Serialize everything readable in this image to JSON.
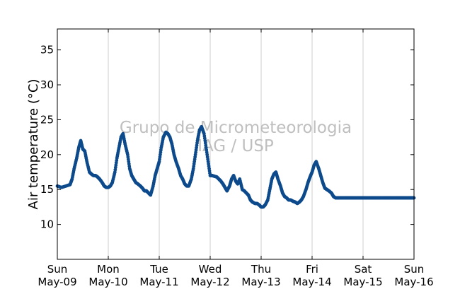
{
  "chart_data": {
    "type": "scatter",
    "ylabel": "Air temperature (°C)",
    "xlabel": "",
    "ylim": [
      5,
      38
    ],
    "xlim": [
      0,
      7
    ],
    "yticks": [
      10,
      15,
      20,
      25,
      30,
      35
    ],
    "xticks": [
      {
        "x": 0,
        "day": "Sun",
        "date": "May-09"
      },
      {
        "x": 1,
        "day": "Mon",
        "date": "May-10"
      },
      {
        "x": 2,
        "day": "Tue",
        "date": "May-11"
      },
      {
        "x": 3,
        "day": "Wed",
        "date": "May-12"
      },
      {
        "x": 4,
        "day": "Thu",
        "date": "May-13"
      },
      {
        "x": 5,
        "day": "Fri",
        "date": "May-14"
      },
      {
        "x": 6,
        "day": "Sat",
        "date": "May-15"
      },
      {
        "x": 7,
        "day": "Sun",
        "date": "May-16"
      }
    ],
    "grid": "vertical",
    "marker_color": "#0d4a8c",
    "watermark": [
      "Grupo de Micrometeorologia",
      "IAG / USP"
    ],
    "series": [
      {
        "x": [
          0.0,
          0.08,
          0.17,
          0.25,
          0.29,
          0.33,
          0.38,
          0.42,
          0.46,
          0.5,
          0.54,
          0.58,
          0.63,
          0.67,
          0.71,
          0.75,
          0.79,
          0.83,
          0.88,
          0.92,
          0.96,
          1.0,
          1.04,
          1.08,
          1.13,
          1.17,
          1.21,
          1.25,
          1.29,
          1.33,
          1.38,
          1.42,
          1.46,
          1.5,
          1.54,
          1.58,
          1.63,
          1.67,
          1.71,
          1.75,
          1.79,
          1.83,
          1.88,
          1.92,
          1.96,
          2.0,
          2.04,
          2.08,
          2.13,
          2.17,
          2.21,
          2.25,
          2.29,
          2.33,
          2.38,
          2.42,
          2.46,
          2.5,
          2.54,
          2.58,
          2.63,
          2.67,
          2.71,
          2.75,
          2.79,
          2.83,
          2.88,
          2.92,
          2.96,
          3.0,
          3.04,
          3.08,
          3.13,
          3.17,
          3.21,
          3.25,
          3.29,
          3.33,
          3.38,
          3.42,
          3.46,
          3.5,
          3.54,
          3.58,
          3.63,
          3.67,
          3.71,
          3.75,
          3.79,
          3.83,
          3.88,
          3.92,
          3.96,
          4.0,
          4.04,
          4.08,
          4.13,
          4.17,
          4.21,
          4.25,
          4.29,
          4.33,
          4.38,
          4.42,
          4.46,
          4.5,
          4.54,
          4.58,
          4.63,
          4.67,
          4.71,
          4.75,
          4.79,
          4.83,
          4.88,
          4.92,
          4.96,
          5.0,
          5.04,
          5.08,
          5.13,
          5.17,
          5.21,
          5.25,
          5.29,
          5.33,
          5.38,
          5.42,
          5.46,
          5.5,
          5.54,
          5.58,
          5.63,
          5.67,
          5.71,
          5.75,
          5.79,
          5.83,
          5.88,
          5.92,
          5.96,
          6.0,
          6.04,
          6.08,
          6.13,
          6.17,
          6.21,
          6.25,
          6.29,
          6.33,
          6.38,
          6.42,
          6.46,
          6.5,
          6.54,
          6.58,
          6.63,
          6.67,
          6.71,
          6.75,
          6.79,
          6.83,
          6.88,
          6.92,
          6.96,
          7.0
        ],
        "y": [
          15.5,
          15.3,
          15.5,
          15.7,
          16.5,
          18.0,
          19.5,
          21.0,
          22.0,
          20.8,
          20.5,
          19.0,
          17.5,
          17.2,
          17.0,
          17.0,
          16.8,
          16.5,
          16.0,
          15.5,
          15.3,
          15.3,
          15.5,
          16.0,
          17.5,
          19.5,
          21.0,
          22.5,
          23.0,
          21.5,
          20.0,
          18.0,
          17.0,
          16.5,
          16.0,
          15.8,
          15.5,
          15.2,
          14.8,
          14.8,
          14.5,
          14.2,
          15.5,
          17.0,
          18.0,
          19.0,
          21.0,
          22.5,
          23.2,
          23.0,
          22.5,
          21.5,
          20.0,
          19.0,
          18.0,
          17.0,
          16.5,
          15.8,
          15.5,
          15.5,
          16.5,
          18.0,
          20.0,
          22.0,
          23.5,
          24.0,
          23.0,
          21.0,
          19.0,
          17.0,
          17.0,
          16.9,
          16.8,
          16.5,
          16.2,
          15.8,
          15.3,
          14.8,
          15.5,
          16.5,
          17.0,
          16.2,
          15.8,
          16.5,
          15.0,
          14.8,
          14.5,
          14.2,
          13.5,
          13.2,
          13.0,
          13.0,
          12.8,
          12.5,
          12.5,
          12.8,
          13.5,
          15.0,
          16.5,
          17.2,
          17.5,
          16.5,
          15.5,
          14.5,
          14.0,
          13.8,
          13.5,
          13.5,
          13.3,
          13.2,
          13.0,
          13.2,
          13.5,
          14.0,
          15.0,
          16.0,
          16.8,
          17.5,
          18.5,
          19.0,
          18.0,
          17.0,
          16.0,
          15.2,
          15.0,
          14.8,
          14.5,
          14.0,
          13.8,
          13.8,
          13.8,
          13.8,
          13.8,
          13.8,
          13.8,
          13.8,
          13.8,
          13.8,
          13.8,
          13.8,
          13.8,
          13.8,
          13.8,
          13.8,
          13.8,
          13.8,
          13.8,
          13.8,
          13.8,
          13.8,
          13.8,
          13.8,
          13.8,
          13.8,
          13.8,
          13.8,
          13.8,
          13.8,
          13.8,
          13.8,
          13.8,
          13.8,
          13.8,
          13.8,
          13.8,
          13.8
        ]
      }
    ]
  }
}
